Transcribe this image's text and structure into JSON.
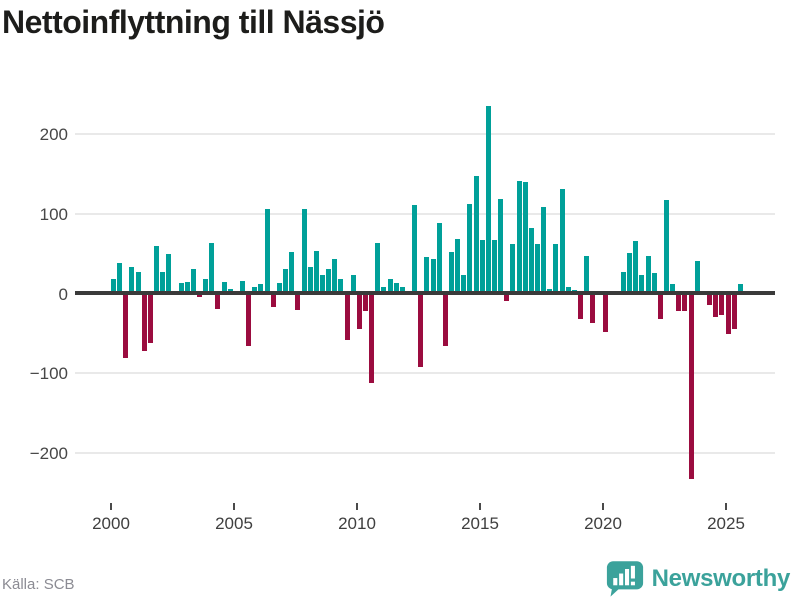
{
  "title": "Nettoinflyttning till Nässjö",
  "source": {
    "label": "Källa: SCB"
  },
  "branding": {
    "wordmark": "Newsworthy",
    "logo_icon": "bar-chart-speech-bubble-icon",
    "color": "#3BA29B"
  },
  "colors": {
    "positive_bar": "#00A099",
    "negative_bar": "#9B0C3F",
    "zero_line": "#3a3a3a",
    "gridline": "#e9e9e9",
    "title_text": "#1d1d1b",
    "axis_text": "#474747",
    "source_text": "#8b8b93"
  },
  "chart_data": {
    "type": "bar",
    "title": "Nettoinflyttning till Nässjö",
    "frequency": "quarterly",
    "x_start": "2000 Q1",
    "x_end": "2025 Q3",
    "ylim": [
      -250,
      250
    ],
    "grid": "horizontal",
    "legend": "none",
    "xticks": [
      "2000",
      "2005",
      "2010",
      "2015",
      "2020",
      "2025"
    ],
    "yticks": [
      200,
      100,
      0,
      -100,
      -200
    ],
    "ytick_labels": [
      "200",
      "100",
      "0",
      "−100",
      "−200"
    ],
    "series_name": "Nettoinflyttning",
    "values": [
      17,
      37,
      -82,
      33,
      26,
      -73,
      -63,
      59,
      26,
      49,
      2,
      12,
      14,
      30,
      -5,
      18,
      63,
      -20,
      14,
      5,
      2,
      15,
      -67,
      8,
      11,
      105,
      -17,
      13,
      30,
      51,
      -21,
      105,
      33,
      53,
      23,
      30,
      43,
      18,
      -59,
      23,
      -45,
      -22,
      -113,
      63,
      8,
      18,
      13,
      7,
      3,
      110,
      -93,
      45,
      43,
      88,
      -66,
      52,
      68,
      23,
      112,
      147,
      67,
      235,
      66,
      118,
      -10,
      62,
      140,
      139,
      82,
      61,
      108,
      5,
      62,
      130,
      7,
      4,
      -33,
      47,
      -38,
      0,
      -49,
      0,
      3,
      26,
      50,
      65,
      23,
      47,
      25,
      -33,
      116,
      11,
      -22,
      -22,
      -233,
      40,
      3,
      -15,
      -30,
      -27,
      -52,
      -45,
      11
    ]
  }
}
